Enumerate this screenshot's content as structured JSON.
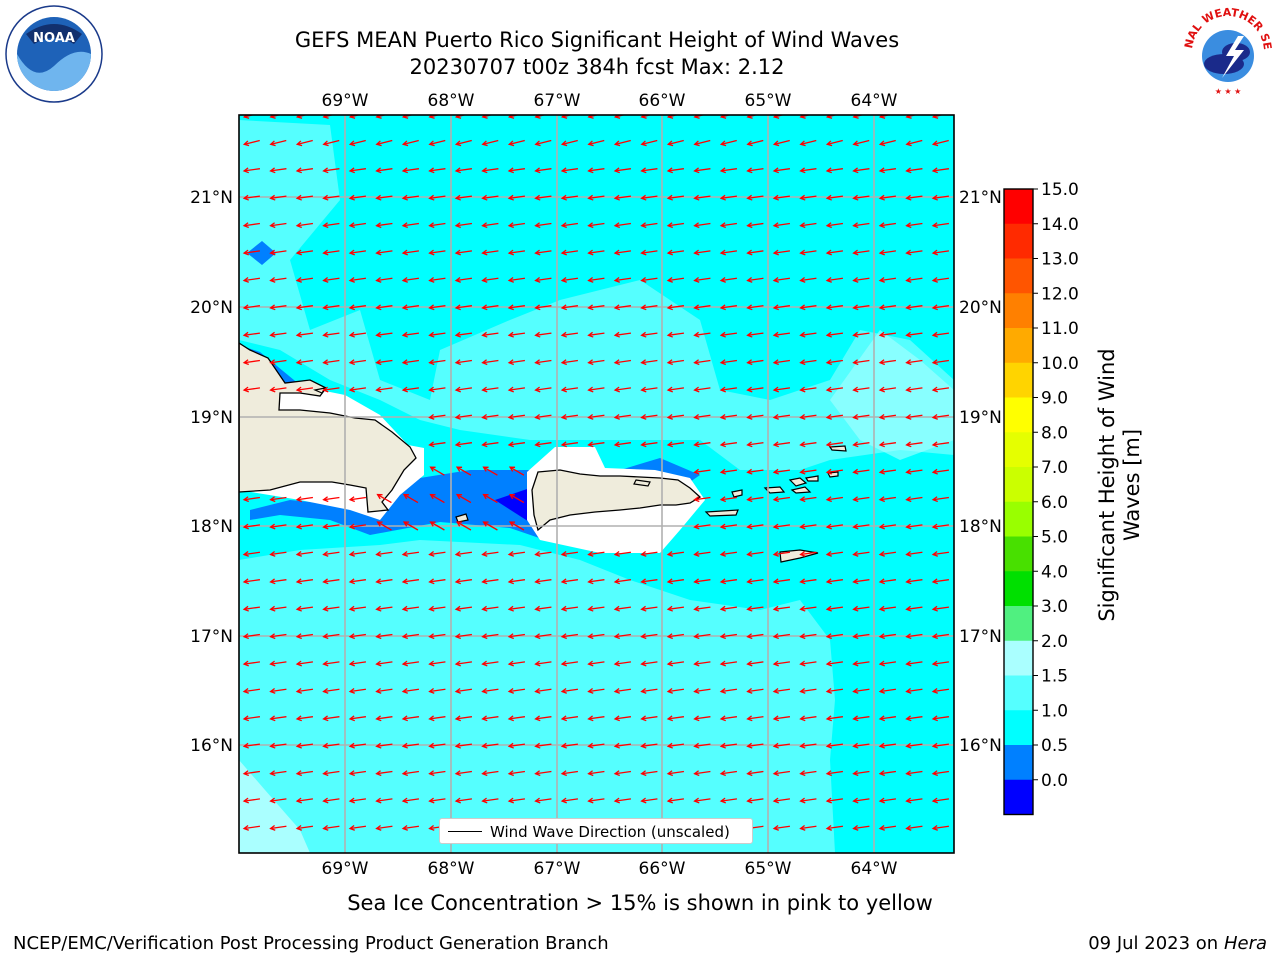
{
  "title": {
    "line1": "GEFS MEAN Puerto Rico Significant Height of Wind Waves",
    "line2": "20230707 t00z 384h fcst   Max: 2.12"
  },
  "map": {
    "lon_labels": [
      "69°W",
      "68°W",
      "67°W",
      "66°W",
      "65°W",
      "64°W"
    ],
    "lat_labels": [
      "21°N",
      "20°N",
      "19°N",
      "18°N",
      "17°N",
      "16°N"
    ],
    "legend_label": "Wind Wave Direction (unscaled)",
    "arrow_color": "#ff0000"
  },
  "colorbar": {
    "label_line1": "Significant Height of Wind",
    "label_line2": "Waves [m]",
    "ticks": [
      "15.0",
      "14.0",
      "13.0",
      "12.0",
      "11.0",
      "10.0",
      "9.0",
      "8.0",
      "7.0",
      "6.0",
      "5.0",
      "4.0",
      "3.0",
      "2.0",
      "1.5",
      "1.0",
      "0.5",
      "0.0"
    ],
    "bands_top_to_bottom": [
      "#ff0000",
      "#ff2a00",
      "#ff5500",
      "#ff8000",
      "#ffaa00",
      "#ffd400",
      "#ffff00",
      "#e5ff00",
      "#cbff00",
      "#99ff00",
      "#48e000",
      "#00e000",
      "#50f080",
      "#aaffff",
      "#55ffff",
      "#00ffff",
      "#0080ff",
      "#0000ff"
    ]
  },
  "subcaption": "Sea Ice Concentration > 15% is shown in pink to yellow",
  "footer": {
    "left": "NCEP/EMC/Verification Post Processing Product Generation Branch",
    "right_prefix": "09 Jul 2023 on ",
    "right_machine": "Hera"
  },
  "logos": {
    "noaa_text": "NOAA",
    "nws_text": "NATIONAL WEATHER SERVICE"
  }
}
